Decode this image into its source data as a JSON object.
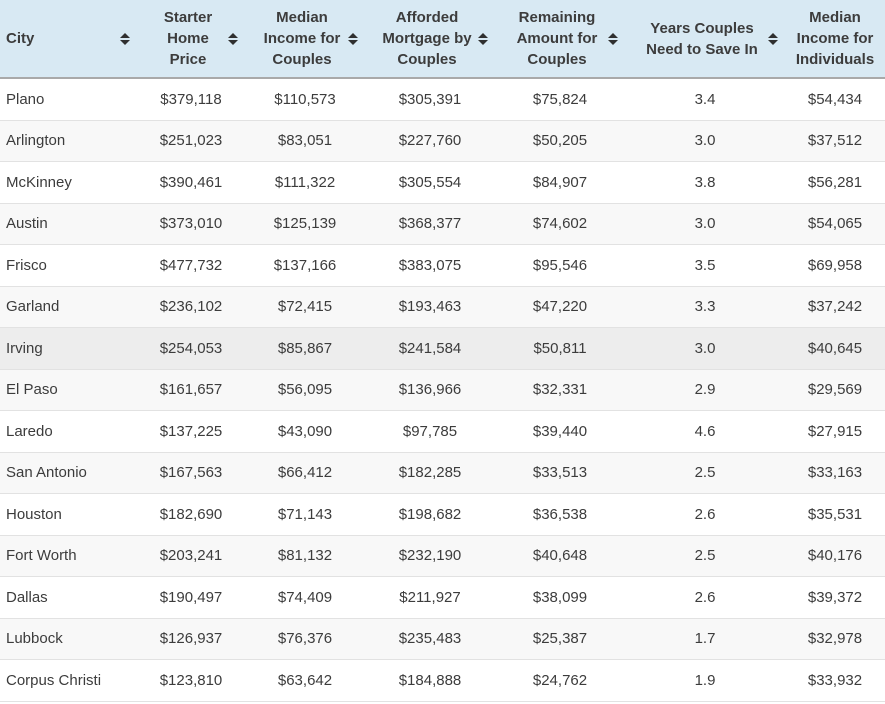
{
  "table": {
    "columns": [
      {
        "label": "City",
        "sortable": true
      },
      {
        "label": "Starter Home Price",
        "sortable": true
      },
      {
        "label": "Median Income for Couples",
        "sortable": true
      },
      {
        "label": "Afforded Mortgage by Couples",
        "sortable": true
      },
      {
        "label": "Remaining Amount for Couples",
        "sortable": true
      },
      {
        "label": "Years Couples Need to Save In",
        "sortable": true
      },
      {
        "label": "Median Income for Individuals",
        "sortable": false
      }
    ],
    "highlighted_row_index": 6,
    "rows": [
      {
        "cells": [
          "Plano",
          "$379,118",
          "$110,573",
          "$305,391",
          "$75,824",
          "3.4",
          "$54,434"
        ]
      },
      {
        "cells": [
          "Arlington",
          "$251,023",
          "$83,051",
          "$227,760",
          "$50,205",
          "3.0",
          "$37,512"
        ]
      },
      {
        "cells": [
          "McKinney",
          "$390,461",
          "$111,322",
          "$305,554",
          "$84,907",
          "3.8",
          "$56,281"
        ]
      },
      {
        "cells": [
          "Austin",
          "$373,010",
          "$125,139",
          "$368,377",
          "$74,602",
          "3.0",
          "$54,065"
        ]
      },
      {
        "cells": [
          "Frisco",
          "$477,732",
          "$137,166",
          "$383,075",
          "$95,546",
          "3.5",
          "$69,958"
        ]
      },
      {
        "cells": [
          "Garland",
          "$236,102",
          "$72,415",
          "$193,463",
          "$47,220",
          "3.3",
          "$37,242"
        ]
      },
      {
        "cells": [
          "Irving",
          "$254,053",
          "$85,867",
          "$241,584",
          "$50,811",
          "3.0",
          "$40,645"
        ]
      },
      {
        "cells": [
          "El Paso",
          "$161,657",
          "$56,095",
          "$136,966",
          "$32,331",
          "2.9",
          "$29,569"
        ]
      },
      {
        "cells": [
          "Laredo",
          "$137,225",
          "$43,090",
          "$97,785",
          "$39,440",
          "4.6",
          "$27,915"
        ]
      },
      {
        "cells": [
          "San Antonio",
          "$167,563",
          "$66,412",
          "$182,285",
          "$33,513",
          "2.5",
          "$33,163"
        ]
      },
      {
        "cells": [
          "Houston",
          "$182,690",
          "$71,143",
          "$198,682",
          "$36,538",
          "2.6",
          "$35,531"
        ]
      },
      {
        "cells": [
          "Fort Worth",
          "$203,241",
          "$81,132",
          "$232,190",
          "$40,648",
          "2.5",
          "$40,176"
        ]
      },
      {
        "cells": [
          "Dallas",
          "$190,497",
          "$74,409",
          "$211,927",
          "$38,099",
          "2.6",
          "$39,372"
        ]
      },
      {
        "cells": [
          "Lubbock",
          "$126,937",
          "$76,376",
          "$235,483",
          "$25,387",
          "1.7",
          "$32,978"
        ]
      },
      {
        "cells": [
          "Corpus Christi",
          "$123,810",
          "$63,642",
          "$184,888",
          "$24,762",
          "1.9",
          "$33,932"
        ]
      }
    ],
    "colors": {
      "header_bg": "#d8e9f3",
      "header_border": "#a9a9a9",
      "row_border": "#e2e2e2",
      "row_alt_bg": "#f8f8f8",
      "row_highlight_bg": "#ededed",
      "text_color": "#3c3c3c"
    }
  }
}
